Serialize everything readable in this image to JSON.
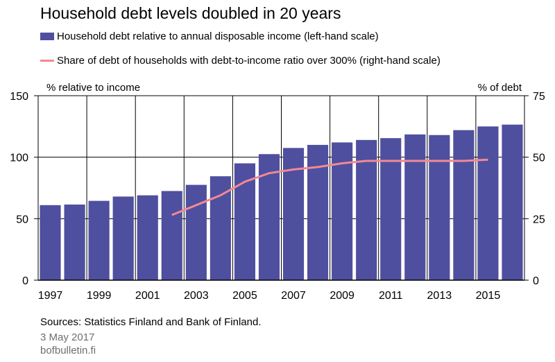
{
  "colors": {
    "bar": "#4f4f9f",
    "line": "#f08a93",
    "grid": "#000000",
    "footer_grey": "#6d6e71"
  },
  "chart_data": {
    "type": "bar",
    "title": "Household debt levels doubled in 20 years",
    "left_axis_label": "% relative to income",
    "right_axis_label": "% of debt",
    "x": [
      1997,
      1998,
      1999,
      2000,
      2001,
      2002,
      2003,
      2004,
      2005,
      2006,
      2007,
      2008,
      2009,
      2010,
      2011,
      2012,
      2013,
      2014,
      2015,
      2016
    ],
    "x_tick_labels": [
      "1997",
      "1999",
      "2001",
      "2003",
      "2005",
      "2007",
      "2009",
      "2011",
      "2013",
      "2015"
    ],
    "ylim_left": [
      0,
      150
    ],
    "yticks_left": [
      "150",
      "100",
      "50",
      "0"
    ],
    "ylim_right": [
      0,
      75
    ],
    "yticks_right": [
      "75",
      "50",
      "25",
      "0"
    ],
    "series": [
      {
        "name": "Household debt relative to annual disposable income (left-hand scale)",
        "axis": "left",
        "type": "bar",
        "values": [
          61,
          61.5,
          64.5,
          68,
          69,
          72.5,
          77.5,
          84.5,
          95,
          102.5,
          107.5,
          110,
          112,
          114,
          115.5,
          118.5,
          118,
          122,
          125,
          126.5
        ]
      },
      {
        "name": "Share of debt of households with debt-to-income ratio over 300% (right-hand scale)",
        "axis": "right",
        "type": "line",
        "x": [
          2002,
          2003,
          2004,
          2005,
          2006,
          2007,
          2008,
          2009,
          2010,
          2011,
          2012,
          2013,
          2014,
          2015
        ],
        "values": [
          26.5,
          30.5,
          34.5,
          40,
          43.5,
          45,
          46,
          47.5,
          48.5,
          48.5,
          48.5,
          48.5,
          48.5,
          49
        ]
      }
    ],
    "grid": true,
    "legend": "top-left"
  },
  "footer": {
    "sources": "Sources: Statistics Finland and Bank of Finland.",
    "date": "3 May 2017",
    "site": "bofbulletin.fi"
  }
}
